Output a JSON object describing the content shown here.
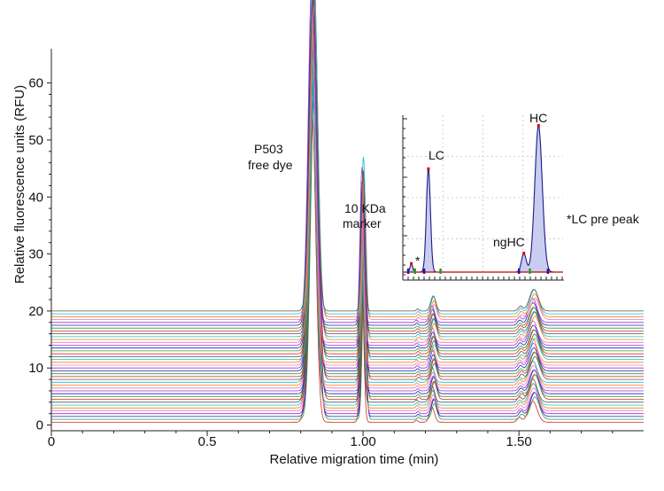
{
  "chart_data": {
    "type": "line",
    "title": "",
    "xlabel": "Relative migration time (min)",
    "ylabel": "Relative fluorescence units (RFU)",
    "xlim": [
      0,
      1.9
    ],
    "ylim": [
      -1,
      66
    ],
    "x_ticks": [
      0,
      0.5,
      1.0,
      1.5
    ],
    "x_tick_labels": [
      "0",
      "0.5",
      "1.00",
      "1.50"
    ],
    "y_ticks": [
      0,
      10,
      20,
      30,
      40,
      50,
      60
    ],
    "y_tick_labels": [
      "0",
      "10",
      "20",
      "30",
      "40",
      "50",
      "60"
    ],
    "grid": false,
    "legend": "none",
    "stacked_traces": {
      "count": 40,
      "baseline_start": 0.5,
      "baseline_step": 0.5,
      "colors": [
        "#d62728",
        "#2ca02c",
        "#1f1fbf",
        "#9933cc",
        "#e377c2",
        "#ff7f0e",
        "#17becf",
        "#555555"
      ],
      "peaks": [
        {
          "label": "P503 free dye",
          "x": 0.84,
          "width": 0.012,
          "height": 59
        },
        {
          "label": "10 KDa marker",
          "x": 1.0,
          "width": 0.006,
          "height": 26
        },
        {
          "label": "LC",
          "x": 1.225,
          "width": 0.008,
          "height": 2.8
        },
        {
          "label": "*LC pre peak",
          "x": 1.175,
          "width": 0.004,
          "height": 0.4
        },
        {
          "label": "ngHC",
          "x": 1.505,
          "width": 0.007,
          "height": 0.9
        },
        {
          "label": "HC",
          "x": 1.548,
          "width": 0.014,
          "height": 4.0
        }
      ]
    },
    "annotations": {
      "dye_line1": "P503",
      "dye_line2": "free dye",
      "marker_line1": "10 KDa",
      "marker_line2": "marker"
    },
    "inset": {
      "type": "line",
      "x_range": [
        1.15,
        1.62
      ],
      "labels": {
        "lc": "LC",
        "hc": "HC",
        "nghc": "ngHC",
        "star": "*",
        "lc_pre_peak": "*LC pre peak"
      },
      "peaks": [
        {
          "label": "*",
          "x": 1.175,
          "width": 0.004,
          "height": 0.08
        },
        {
          "label": "LC",
          "x": 1.225,
          "width": 0.006,
          "height": 1.0
        },
        {
          "label": "ngHC",
          "x": 1.505,
          "width": 0.007,
          "height": 0.18
        },
        {
          "label": "HC",
          "x": 1.548,
          "width": 0.011,
          "height": 1.42
        }
      ],
      "fill_color": "#c9cdef",
      "line_color": "#1a1a8a"
    }
  }
}
